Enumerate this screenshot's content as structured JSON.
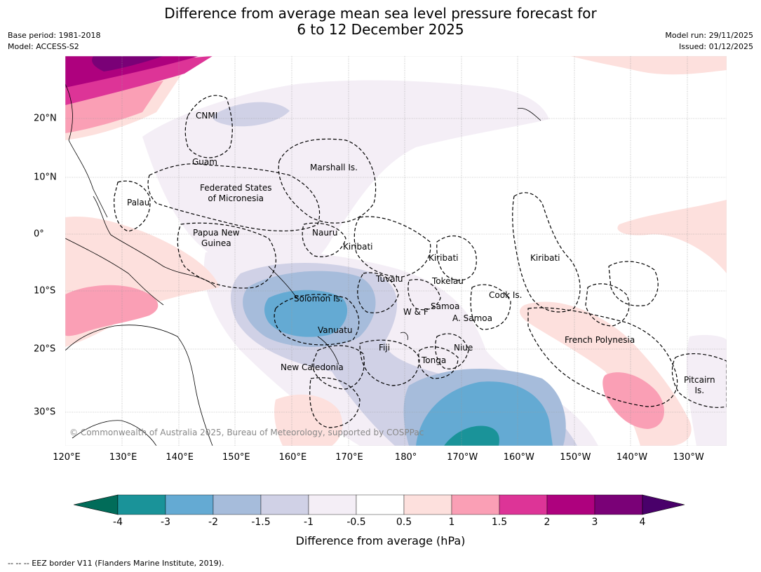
{
  "title": {
    "line1": "Difference from average mean sea level pressure forecast for",
    "line2": "6 to 12 December 2025"
  },
  "meta": {
    "base_period": "Base period: 1981-2018",
    "model": "Model: ACCESS-S2",
    "model_run": "Model run: 29/11/2025",
    "issued": "Issued: 01/12/2025"
  },
  "map": {
    "lon_ticks": [
      "120°E",
      "130°E",
      "140°E",
      "150°E",
      "160°E",
      "170°E",
      "180°",
      "170°W",
      "160°W",
      "150°W",
      "140°W",
      "130°W"
    ],
    "lat_ticks": [
      "20°N",
      "10°N",
      "0°",
      "10°S",
      "20°S",
      "30°S"
    ],
    "regions": {
      "cnmi": "CNMI",
      "guam": "Guam",
      "marshall": "Marshall Is.",
      "fsm1": "Federated States",
      "fsm2": "of Micronesia",
      "palau": "Palau",
      "png1": "Papua New",
      "png2": "Guinea",
      "nauru": "Nauru",
      "kiribati_w": "Kiribati",
      "kiribati_c": "Kiribati",
      "kiribati_e": "Kiribati",
      "tuvalu": "Tuvalu",
      "tokelau": "Tokelau",
      "cook": "Cook Is.",
      "solomon": "Solomon Is.",
      "samoa": "Samoa",
      "wf": "W & F",
      "asamoa": "A. Samoa",
      "vanuatu": "Vanuatu",
      "fiji": "Fiji",
      "niue": "Niue",
      "tonga": "Tonga",
      "newcal": "New Caledonia",
      "frpoly": "French Polynesia",
      "pitcairn1": "Pitcairn",
      "pitcairn2": "Is."
    },
    "copyright": "© Commonwealth of Australia 2025, Bureau of Meteorology, supported by COSPPac"
  },
  "colorbar": {
    "title": "Difference from average (hPa)",
    "tick_labels": [
      "-4",
      "-3",
      "-2",
      "-1.5",
      "-1",
      "-0.5",
      "0.5",
      "1",
      "1.5",
      "2",
      "3",
      "4"
    ],
    "colors": [
      "#1a9399",
      "#64aad3",
      "#a6bcdb",
      "#d0d1e6",
      "#f4eef6",
      "#ffffff",
      "#fde0dd",
      "#fa9fb5",
      "#dd3497",
      "#ae017e",
      "#7a0177"
    ],
    "under_color": "#016c59",
    "over_color": "#49006a"
  },
  "footer": "-- -- -- EEZ border V11 (Flanders Marine Institute, 2019)."
}
